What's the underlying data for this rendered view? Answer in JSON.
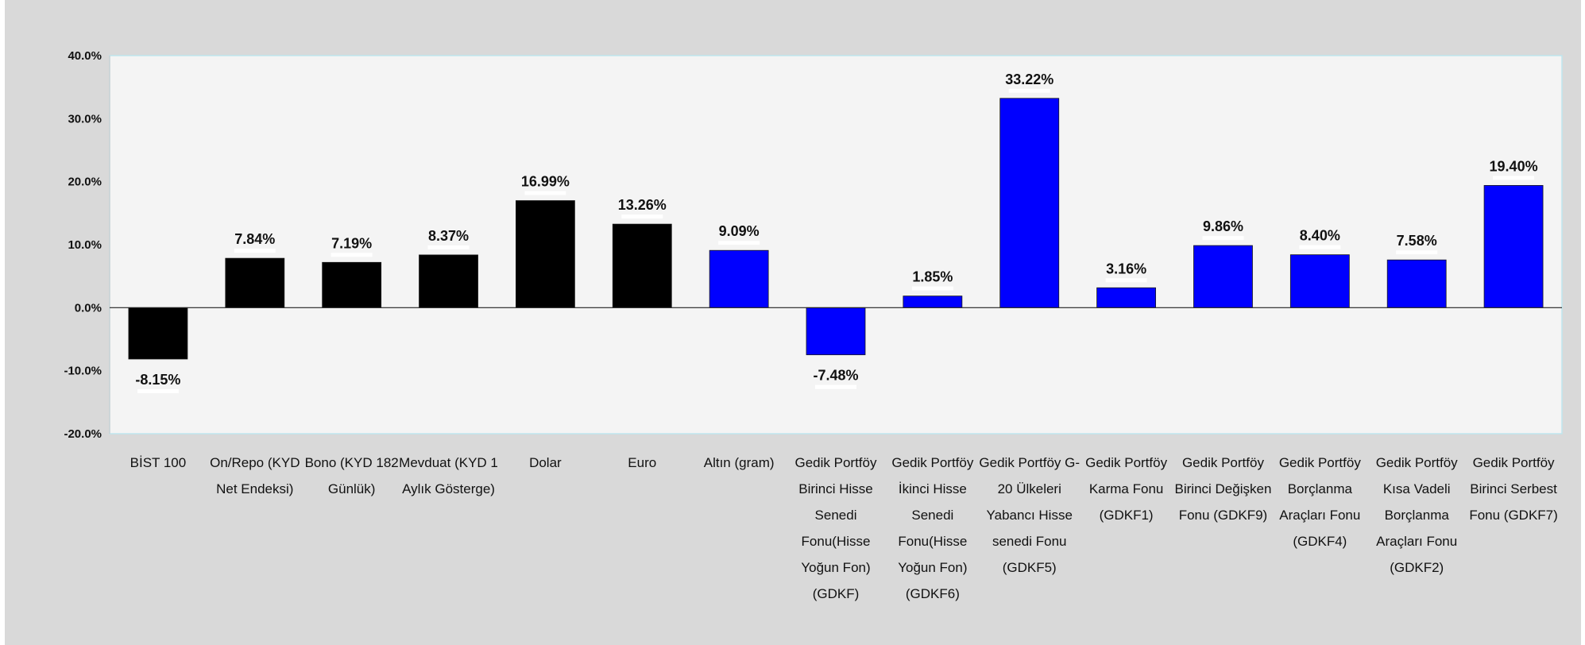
{
  "chart_data": {
    "type": "bar",
    "title": "",
    "xlabel": "",
    "ylabel": "",
    "ylim": [
      -0.2,
      0.4
    ],
    "yticks": [
      -0.2,
      -0.1,
      0.0,
      0.1,
      0.2,
      0.3,
      0.4
    ],
    "ytick_labels": [
      "-20.0%",
      "-10.0%",
      "0.0%",
      "10.0%",
      "20.0%",
      "30.0%",
      "40.0%"
    ],
    "grid": false,
    "legend": "none",
    "bars": [
      {
        "category": [
          "BİST 100"
        ],
        "value": -0.0815,
        "label": "-8.15%",
        "color": "#000000"
      },
      {
        "category": [
          "On/Repo (KYD",
          "Net Endeksi)"
        ],
        "value": 0.0784,
        "label": "7.84%",
        "color": "#000000"
      },
      {
        "category": [
          "Bono (KYD 182",
          "Günlük)"
        ],
        "value": 0.0719,
        "label": "7.19%",
        "color": "#000000"
      },
      {
        "category": [
          "Mevduat (KYD 1",
          "Aylık Gösterge)"
        ],
        "value": 0.0837,
        "label": "8.37%",
        "color": "#000000"
      },
      {
        "category": [
          "Dolar"
        ],
        "value": 0.1699,
        "label": "16.99%",
        "color": "#000000"
      },
      {
        "category": [
          "Euro"
        ],
        "value": 0.1326,
        "label": "13.26%",
        "color": "#000000"
      },
      {
        "category": [
          "Altın (gram)"
        ],
        "value": 0.0909,
        "label": "9.09%",
        "color": "#0000ff"
      },
      {
        "category": [
          "Gedik Portföy",
          "Birinci Hisse",
          "Senedi",
          "Fonu(Hisse",
          "Yoğun Fon)",
          "(GDKF)"
        ],
        "value": -0.0748,
        "label": "-7.48%",
        "color": "#0000ff"
      },
      {
        "category": [
          "Gedik Portföy",
          "İkinci Hisse",
          "Senedi",
          "Fonu(Hisse",
          "Yoğun Fon)",
          "(GDKF6)"
        ],
        "value": 0.0185,
        "label": "1.85%",
        "color": "#0000ff"
      },
      {
        "category": [
          "Gedik Portföy G-",
          "20 Ülkeleri",
          "Yabancı Hisse",
          "senedi Fonu",
          "(GDKF5)"
        ],
        "value": 0.3322,
        "label": "33.22%",
        "color": "#0000ff"
      },
      {
        "category": [
          "Gedik Portföy",
          "Karma Fonu",
          "(GDKF1)"
        ],
        "value": 0.0316,
        "label": "3.16%",
        "color": "#0000ff"
      },
      {
        "category": [
          "Gedik Portföy",
          "Birinci Değişken",
          "Fonu (GDKF9)"
        ],
        "value": 0.0986,
        "label": "9.86%",
        "color": "#0000ff"
      },
      {
        "category": [
          "Gedik Portföy",
          "Borçlanma",
          "Araçları Fonu",
          "(GDKF4)"
        ],
        "value": 0.084,
        "label": "8.40%",
        "color": "#0000ff"
      },
      {
        "category": [
          "Gedik Portföy",
          "Kısa Vadeli",
          "Borçlanma",
          "Araçları Fonu",
          "(GDKF2)"
        ],
        "value": 0.0758,
        "label": "7.58%",
        "color": "#0000ff"
      },
      {
        "category": [
          "Gedik Portföy",
          "Birinci Serbest",
          "Fonu (GDKF7)"
        ],
        "value": 0.194,
        "label": "19.40%",
        "color": "#0000ff"
      }
    ],
    "colors": {
      "frame_background": "#d9d9d9",
      "plot_background": "#f4f4f4",
      "plot_border": "#bfe6ee",
      "axis": "#222222"
    }
  }
}
